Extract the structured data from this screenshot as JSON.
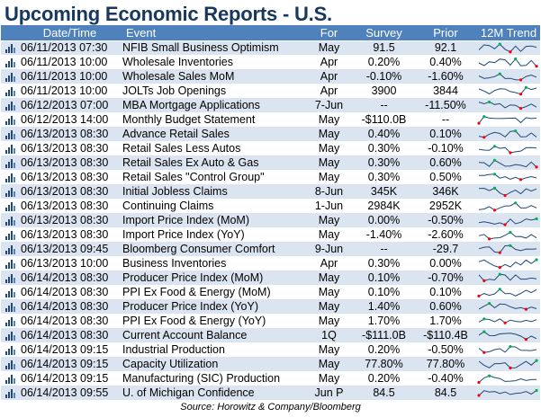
{
  "title": "Upcoming Economic Reports - U.S.",
  "headers": {
    "date": "Date/Time",
    "event": "Event",
    "for": "For",
    "survey": "Survey",
    "prior": "Prior",
    "trend": "12M Trend"
  },
  "rows": [
    {
      "date": "06/11/2013 07:30",
      "event": "NFIB Small Business Optimism",
      "for": "May",
      "survey": "91.5",
      "prior": "92.1"
    },
    {
      "date": "06/11/2013 10:00",
      "event": "Wholesale Inventories",
      "for": "Apr",
      "survey": "0.20%",
      "prior": "0.40%"
    },
    {
      "date": "06/11/2013 10:00",
      "event": "Wholesale Sales MoM",
      "for": "Apr",
      "survey": "-0.10%",
      "prior": "-1.60%"
    },
    {
      "date": "06/11/2013 10:00",
      "event": "JOLTs Job Openings",
      "for": "Apr",
      "survey": "3900",
      "prior": "3844"
    },
    {
      "date": "06/12/2013 07:00",
      "event": "MBA Mortgage Applications",
      "for": "7-Jun",
      "survey": "--",
      "prior": "-11.50%"
    },
    {
      "date": "06/12/2013 14:00",
      "event": "Monthly Budget Statement",
      "for": "May",
      "survey": "-$110.0B",
      "prior": "--"
    },
    {
      "date": "06/13/2013 08:30",
      "event": "Advance Retail Sales",
      "for": "May",
      "survey": "0.40%",
      "prior": "0.10%"
    },
    {
      "date": "06/13/2013 08:30",
      "event": "Retail Sales Less Autos",
      "for": "May",
      "survey": "0.30%",
      "prior": "-0.10%"
    },
    {
      "date": "06/13/2013 08:30",
      "event": "Retail Sales Ex Auto & Gas",
      "for": "May",
      "survey": "0.30%",
      "prior": "0.60%"
    },
    {
      "date": "06/13/2013 08:30",
      "event": "Retail Sales \"Control Group\"",
      "for": "May",
      "survey": "0.30%",
      "prior": "0.50%"
    },
    {
      "date": "06/13/2013 08:30",
      "event": "Initial Jobless Claims",
      "for": "8-Jun",
      "survey": "345K",
      "prior": "346K"
    },
    {
      "date": "06/13/2013 08:30",
      "event": "Continuing Claims",
      "for": "1-Jun",
      "survey": "2984K",
      "prior": "2952K"
    },
    {
      "date": "06/13/2013 08:30",
      "event": "Import Price Index (MoM)",
      "for": "May",
      "survey": "0.00%",
      "prior": "-0.50%"
    },
    {
      "date": "06/13/2013 08:30",
      "event": "Import Price Index (YoY)",
      "for": "May",
      "survey": "-1.40%",
      "prior": "-2.60%"
    },
    {
      "date": "06/13/2013 09:45",
      "event": "Bloomberg Consumer Comfort",
      "for": "9-Jun",
      "survey": "--",
      "prior": "-29.7"
    },
    {
      "date": "06/13/2013 10:00",
      "event": "Business Inventories",
      "for": "Apr",
      "survey": "0.30%",
      "prior": "0.00%"
    },
    {
      "date": "06/14/2013 08:30",
      "event": "Producer Price Index (MoM)",
      "for": "May",
      "survey": "0.10%",
      "prior": "-0.70%"
    },
    {
      "date": "06/14/2013 08:30",
      "event": "PPI Ex Food & Energy (MoM)",
      "for": "May",
      "survey": "0.10%",
      "prior": "0.10%"
    },
    {
      "date": "06/14/2013 08:30",
      "event": "Producer Price Index (YoY)",
      "for": "May",
      "survey": "1.40%",
      "prior": "0.60%"
    },
    {
      "date": "06/14/2013 08:30",
      "event": "PPI Ex Food & Energy (YoY)",
      "for": "May",
      "survey": "1.70%",
      "prior": "1.70%"
    },
    {
      "date": "06/14/2013 08:30",
      "event": "Current Account Balance",
      "for": "1Q",
      "survey": "-$111.0B",
      "prior": "-$110.4B"
    },
    {
      "date": "06/14/2013 09:15",
      "event": "Industrial Production",
      "for": "May",
      "survey": "0.20%",
      "prior": "-0.50%"
    },
    {
      "date": "06/14/2013 09:15",
      "event": "Capacity Utilization",
      "for": "May",
      "survey": "77.80%",
      "prior": "77.80%"
    },
    {
      "date": "06/14/2013 09:15",
      "event": "Manufacturing (SIC) Production",
      "for": "May",
      "survey": "0.20%",
      "prior": "-0.40%"
    },
    {
      "date": "06/14/2013 09:55",
      "event": "U. of Michigan Confidence",
      "for": "Jun P",
      "survey": "84.5",
      "prior": "84.5"
    }
  ],
  "row_icon": "bar-chart-icon",
  "sparkline_colors": {
    "line": "#1f497d",
    "high": "#00b050",
    "low": "#ff0000"
  },
  "source": "Source: Horowitz & Company/Bloomberg"
}
